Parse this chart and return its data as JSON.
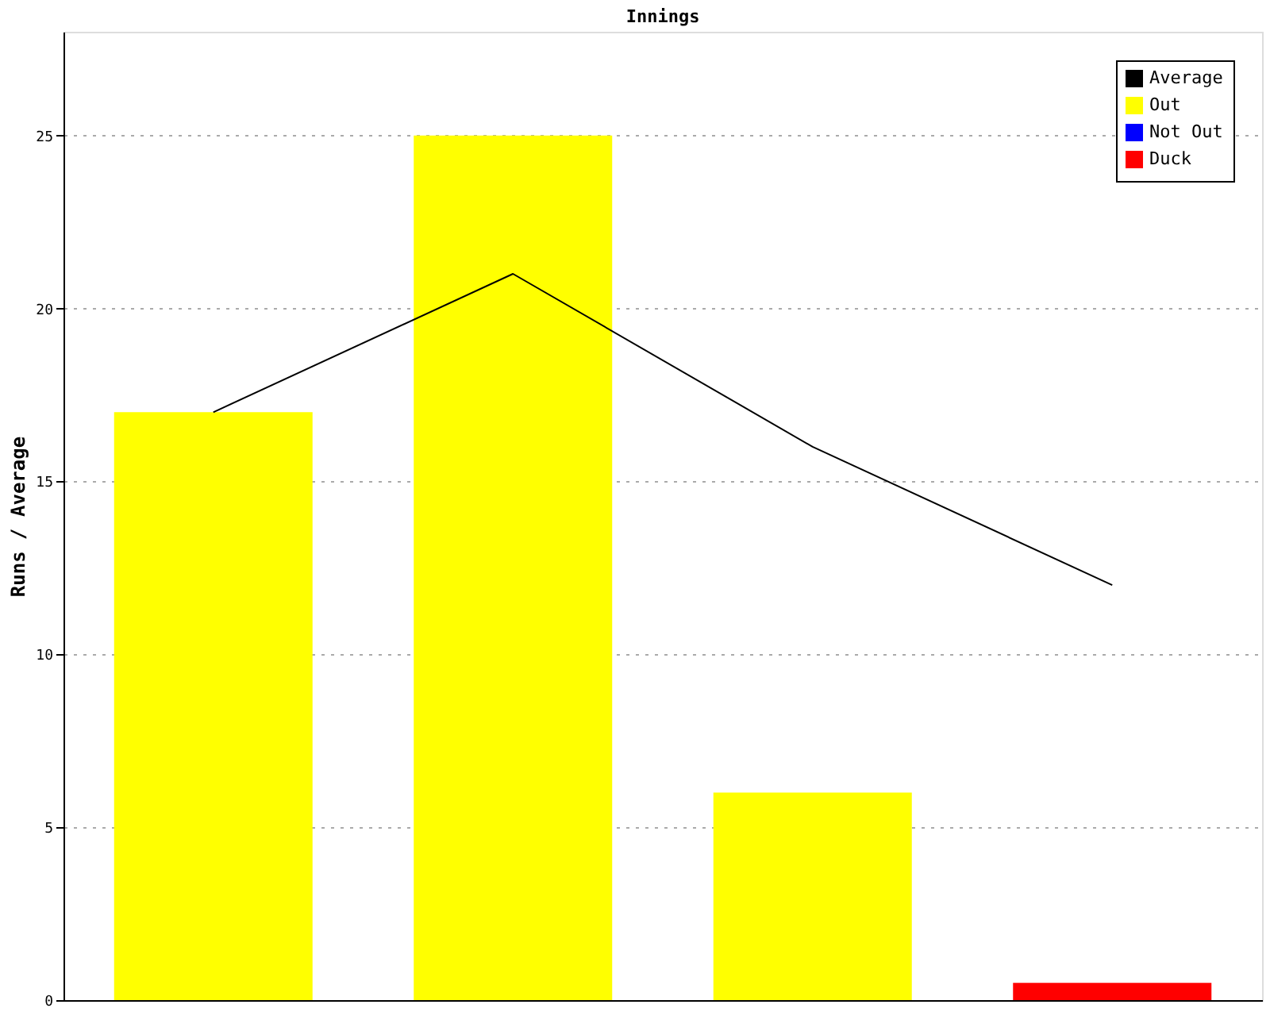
{
  "chart_data": {
    "type": "bar",
    "title": "Innings",
    "ylabel": "Runs / Average",
    "categories": [
      null,
      null,
      null,
      null
    ],
    "series": [
      {
        "name": "Average",
        "type": "line",
        "color": "#000000",
        "values": [
          17,
          21,
          16,
          12
        ]
      },
      {
        "name": "Out",
        "color": "#ffff00",
        "values": [
          17,
          25,
          6,
          null
        ]
      },
      {
        "name": "Not Out",
        "color": "#0000ff",
        "values": [
          null,
          null,
          null,
          null
        ]
      },
      {
        "name": "Duck",
        "color": "#ff0000",
        "values": [
          null,
          null,
          null,
          0.5
        ]
      }
    ],
    "ylim": [
      0,
      28
    ],
    "yticks": [
      0,
      5,
      10,
      15,
      20,
      25
    ],
    "grid": "y",
    "legend": "top right",
    "tick_labels": "y"
  }
}
